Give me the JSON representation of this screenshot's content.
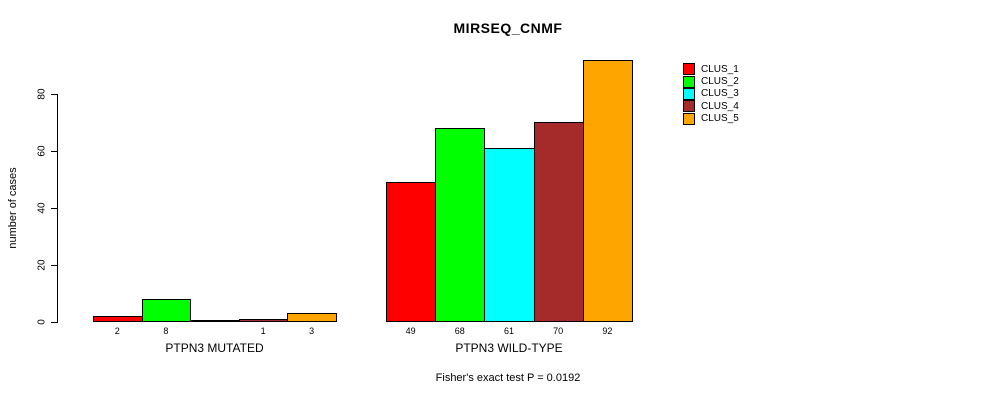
{
  "chart_data": {
    "type": "bar",
    "title": "MIRSEQ_CNMF",
    "ylabel": "number of cases",
    "xlabel": "",
    "categories": [
      "PTPN3 MUTATED",
      "PTPN3 WILD-TYPE"
    ],
    "series": [
      {
        "name": "CLUS_1",
        "color": "#FF0000",
        "values": [
          2,
          49
        ]
      },
      {
        "name": "CLUS_2",
        "color": "#00FF00",
        "values": [
          8,
          68
        ]
      },
      {
        "name": "CLUS_3",
        "color": "#00FFFF",
        "values": [
          0,
          61
        ]
      },
      {
        "name": "CLUS_4",
        "color": "#A52A2A",
        "values": [
          1,
          70
        ]
      },
      {
        "name": "CLUS_5",
        "color": "#FFA500",
        "values": [
          3,
          92
        ]
      }
    ],
    "yticks": [
      0,
      20,
      40,
      60,
      80
    ],
    "ylim": [
      0,
      92
    ],
    "grid": false,
    "legend_position": "right",
    "bar_value_labels_shown": true,
    "zero_value_labels_hidden": true,
    "annotation": "Fisher's exact test P = 0.0192",
    "axis_color": "#000000",
    "bar_border_color": "#000000",
    "background_color": "#FFFFFF"
  }
}
